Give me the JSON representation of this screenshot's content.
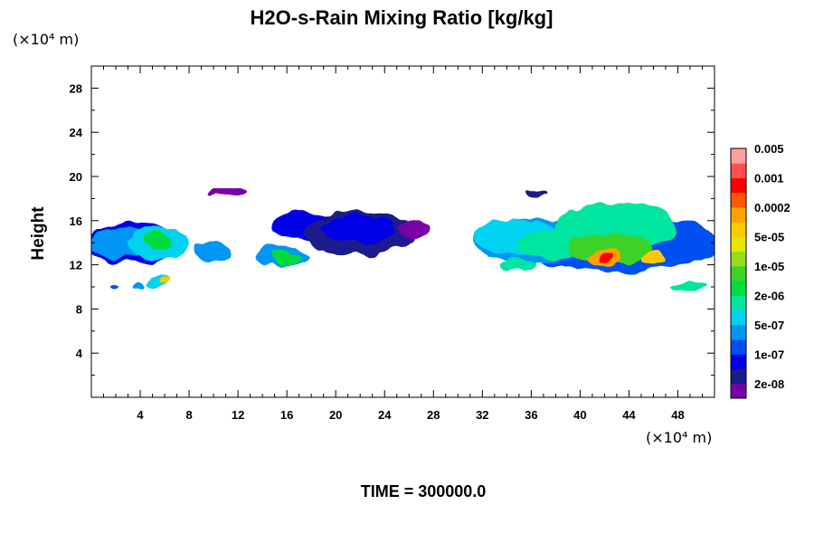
{
  "chart_data": {
    "type": "heatmap",
    "title": "H2O-s-Rain Mixing Ratio [kg/kg]",
    "ylabel": "Height",
    "x_unit_label": "(×10⁴ m)",
    "y_unit_label": "(×10⁴ m)",
    "footer": "TIME = 300000.0",
    "xlim": [
      0,
      51
    ],
    "ylim": [
      0,
      30
    ],
    "x_ticks": [
      "4",
      "8",
      "12",
      "16",
      "20",
      "24",
      "28",
      "32",
      "36",
      "40",
      "44",
      "48"
    ],
    "x_tick_values": [
      4,
      8,
      12,
      16,
      20,
      24,
      28,
      32,
      36,
      40,
      44,
      48
    ],
    "y_ticks": [
      "4",
      "8",
      "12",
      "16",
      "20",
      "24",
      "28"
    ],
    "y_tick_values": [
      4,
      8,
      12,
      16,
      20,
      24,
      28
    ],
    "colorbar": {
      "colors": [
        "#7a00a8",
        "#1a1a8c",
        "#0000e6",
        "#0050f0",
        "#0096f5",
        "#00d2f0",
        "#00e6a0",
        "#00dc3c",
        "#3cd228",
        "#96dc1e",
        "#e6e600",
        "#ffc800",
        "#ffa000",
        "#ff5a00",
        "#ff0000",
        "#ff5050",
        "#ffa0a0"
      ],
      "labels": [
        "2e-08",
        "1e-07",
        "5e-07",
        "2e-06",
        "1e-05",
        "5e-05",
        "0.0002",
        "0.001",
        "0.005"
      ]
    },
    "cloud_regions": [
      {
        "x": 3.5,
        "y": 14.0,
        "rx": 4.5,
        "ry": 1.8,
        "level": 2
      },
      {
        "x": 2.5,
        "y": 14.0,
        "rx": 3.0,
        "ry": 1.4,
        "level": 4
      },
      {
        "x": 5.5,
        "y": 14.0,
        "rx": 2.5,
        "ry": 1.5,
        "level": 5
      },
      {
        "x": 5.5,
        "y": 14.3,
        "rx": 1.2,
        "ry": 0.8,
        "level": 7
      },
      {
        "x": 10.0,
        "y": 13.2,
        "rx": 1.6,
        "ry": 0.9,
        "level": 4
      },
      {
        "x": 15.5,
        "y": 12.8,
        "rx": 2.2,
        "ry": 0.9,
        "level": 4
      },
      {
        "x": 16.0,
        "y": 12.6,
        "rx": 1.2,
        "ry": 0.6,
        "level": 7
      },
      {
        "x": 17.5,
        "y": 15.5,
        "rx": 2.8,
        "ry": 1.2,
        "level": 2
      },
      {
        "x": 22.0,
        "y": 14.8,
        "rx": 4.5,
        "ry": 1.9,
        "level": 1
      },
      {
        "x": 22.0,
        "y": 15.2,
        "rx": 3.0,
        "ry": 1.2,
        "level": 2
      },
      {
        "x": 26.5,
        "y": 15.3,
        "rx": 1.2,
        "ry": 0.7,
        "level": 0
      },
      {
        "x": 11.0,
        "y": 18.5,
        "rx": 1.5,
        "ry": 0.3,
        "level": 0
      },
      {
        "x": 43.0,
        "y": 14.0,
        "rx": 8.5,
        "ry": 2.6,
        "level": 3
      },
      {
        "x": 36.0,
        "y": 14.2,
        "rx": 4.5,
        "ry": 2.0,
        "level": 4
      },
      {
        "x": 35.0,
        "y": 14.5,
        "rx": 3.5,
        "ry": 1.6,
        "level": 5
      },
      {
        "x": 37.5,
        "y": 13.8,
        "rx": 2.5,
        "ry": 1.3,
        "level": 6
      },
      {
        "x": 43.0,
        "y": 15.5,
        "rx": 5.0,
        "ry": 2.2,
        "level": 6
      },
      {
        "x": 42.5,
        "y": 13.5,
        "rx": 3.5,
        "ry": 1.4,
        "level": 8
      },
      {
        "x": 42.0,
        "y": 12.5,
        "rx": 1.2,
        "ry": 0.7,
        "level": 12
      },
      {
        "x": 42.0,
        "y": 12.5,
        "rx": 0.5,
        "ry": 0.4,
        "level": 14
      },
      {
        "x": 46.0,
        "y": 12.5,
        "rx": 1.0,
        "ry": 0.6,
        "level": 11
      },
      {
        "x": 36.5,
        "y": 18.5,
        "rx": 1.0,
        "ry": 0.3,
        "level": 1
      },
      {
        "x": 5.5,
        "y": 10.5,
        "rx": 0.8,
        "ry": 0.5,
        "level": 5
      },
      {
        "x": 6.0,
        "y": 10.5,
        "rx": 0.4,
        "ry": 0.3,
        "level": 11
      },
      {
        "x": 4.0,
        "y": 10.1,
        "rx": 0.5,
        "ry": 0.3,
        "level": 4
      },
      {
        "x": 2.0,
        "y": 10.0,
        "rx": 0.3,
        "ry": 0.2,
        "level": 3
      },
      {
        "x": 49.0,
        "y": 10.0,
        "rx": 1.5,
        "ry": 0.4,
        "level": 6
      },
      {
        "x": 35.0,
        "y": 12.0,
        "rx": 1.5,
        "ry": 0.5,
        "level": 6
      }
    ]
  }
}
